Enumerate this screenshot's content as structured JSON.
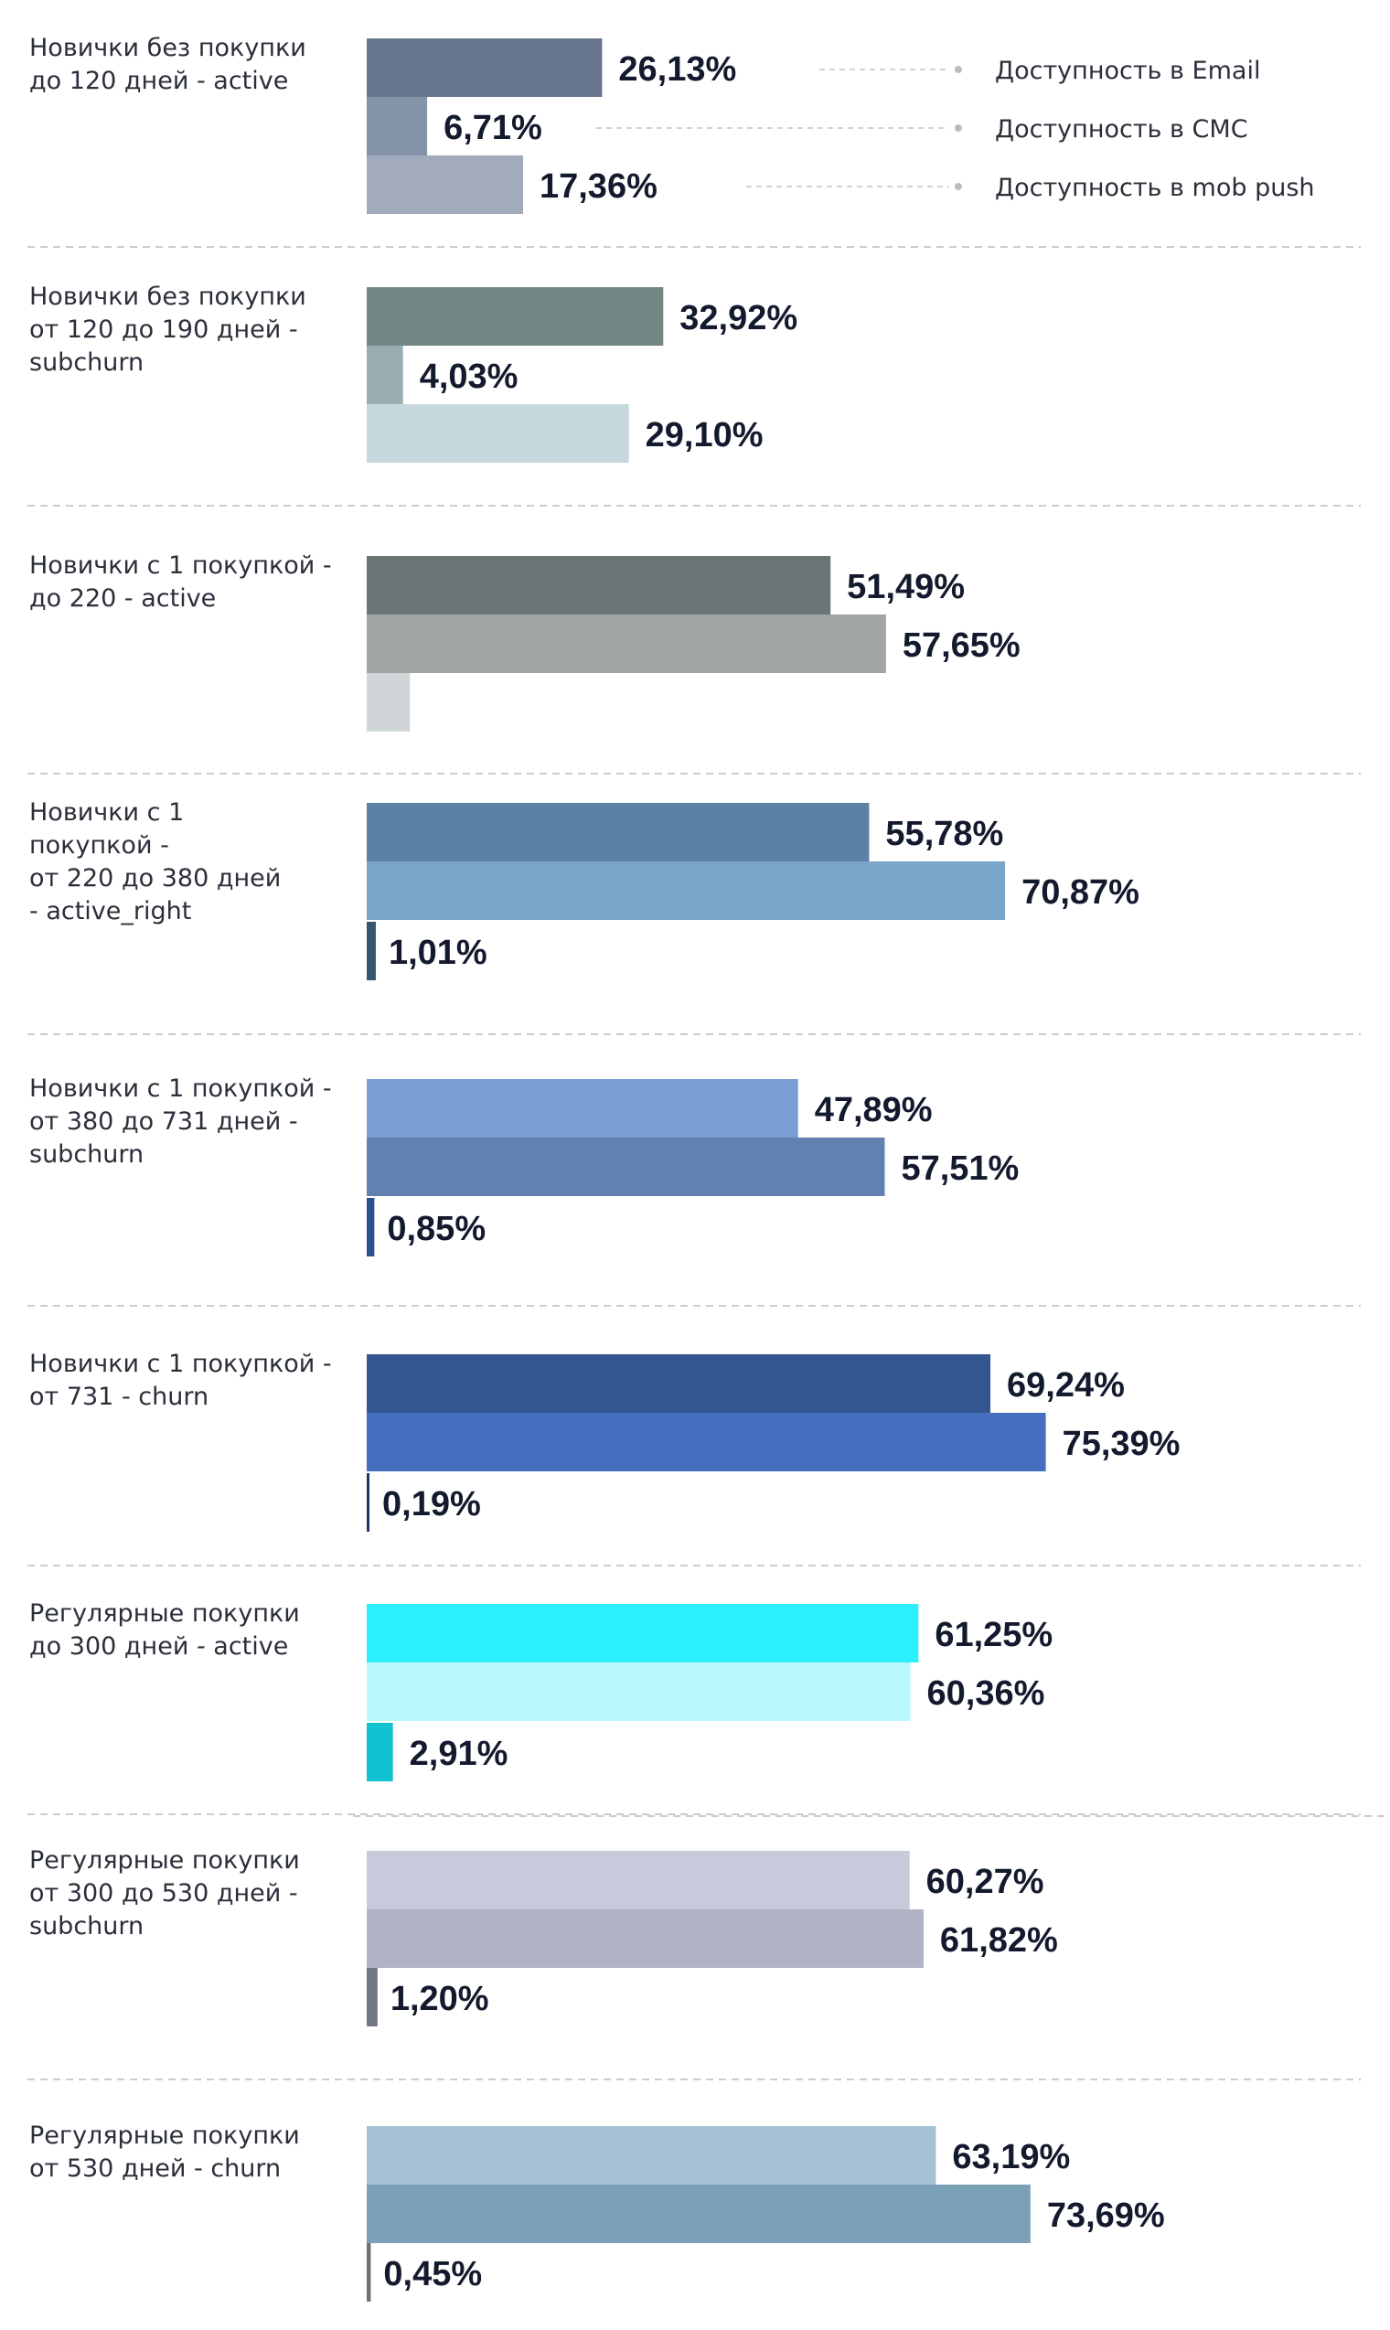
{
  "chart_data": {
    "type": "bar",
    "orientation": "horizontal",
    "xlim": [
      0,
      100
    ],
    "legend": {
      "placement": "top-right",
      "items": [
        "Доступность в Email",
        "Доступность в СМС",
        "Доступность в mob push"
      ]
    },
    "groups": [
      {
        "label_lines": [
          "Новички без  покупки",
          "до 120 дней - active"
        ],
        "values": [
          26.13,
          6.71,
          17.36
        ],
        "labels": [
          "26,13%",
          "6,71%",
          "17,36%"
        ],
        "colors": [
          "#66758c",
          "#8593a8",
          "#a1abbb"
        ]
      },
      {
        "label_lines": [
          "Новички без  покупки",
          "от 120 до 190 дней -",
          "subchurn"
        ],
        "values": [
          32.92,
          4.03,
          29.1
        ],
        "labels": [
          "32,92%",
          "4,03%",
          "29,10%"
        ],
        "colors": [
          "#748684",
          "#99aeb2",
          "#c6d8de"
        ]
      },
      {
        "label_lines": [
          "Новички с 1 покупкой -",
          "до 220  - active"
        ],
        "values": [
          51.49,
          57.65,
          4.8
        ],
        "labels": [
          "51,49%",
          "57,65%",
          ""
        ],
        "colors": [
          "#6a7675",
          "#a0a4a4",
          "#d0d6d8"
        ]
      },
      {
        "label_lines": [
          "Новички с 1",
          "покупкой -",
          "от 220 до 380 дней",
          "- active_right"
        ],
        "values": [
          55.78,
          70.87,
          1.01
        ],
        "labels": [
          "55,78%",
          "70,87%",
          "1,01%"
        ],
        "colors": [
          "#5b82a4",
          "#7aa5ca",
          "#36556f"
        ]
      },
      {
        "label_lines": [
          "Новички с 1 покупкой -",
          "от 380 до 731 дней  -",
          "subchurn"
        ],
        "values": [
          47.89,
          57.51,
          0.85
        ],
        "labels": [
          "47,89%",
          "57,51%",
          "0,85%"
        ],
        "colors": [
          "#7a9fd4",
          "#6181b0",
          "#2c4f8e"
        ]
      },
      {
        "label_lines": [
          "Новички с 1 покупкой -",
          "от 731  - churn"
        ],
        "values": [
          69.24,
          75.39,
          0.19
        ],
        "labels": [
          "69,24%",
          "75,39%",
          "0,19%"
        ],
        "colors": [
          "#335690",
          "#436fbe",
          "#1f3868"
        ]
      },
      {
        "label_lines": [
          "Регулярные покупки",
          "до 300 дней - active"
        ],
        "values": [
          61.25,
          60.36,
          2.91
        ],
        "labels": [
          "61,25%",
          "60,36%",
          "2,91%"
        ],
        "colors": [
          "#2cf0fc",
          "#b9f8fc",
          "#11c2d2"
        ]
      },
      {
        "label_lines": [
          "Регулярные покупки",
          "от 300 до 530 дней -",
          "subchurn"
        ],
        "values": [
          60.27,
          61.82,
          1.2
        ],
        "labels": [
          "60,27%",
          "61,82%",
          "1,20%"
        ],
        "colors": [
          "#c7cadb",
          "#b0b3c3",
          "#6e7785"
        ]
      },
      {
        "label_lines": [
          "Регулярные покупки",
          "от 530 дней - churn"
        ],
        "values": [
          63.19,
          73.69,
          0.45
        ],
        "labels": [
          "63,19%",
          "73,69%",
          "0,45%"
        ],
        "colors": [
          "#a4c2d4",
          "#7aa0b6",
          "#6a7277"
        ]
      }
    ]
  }
}
